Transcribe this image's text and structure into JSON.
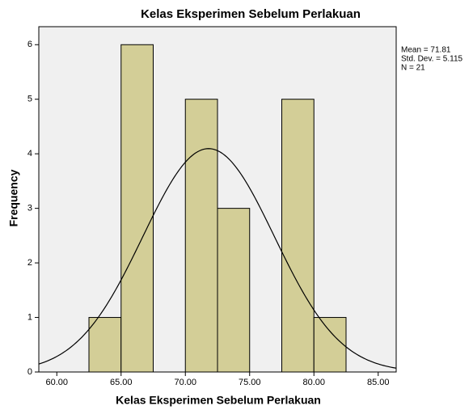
{
  "chart_data": {
    "type": "histogram",
    "title": "Kelas Eksperimen Sebelum Perlakuan",
    "x_label": "Kelas Eksperimen Sebelum Perlakuan",
    "y_label": "Frequency",
    "bins": [
      62.5,
      65,
      67.5,
      70,
      72.5,
      75,
      77.5,
      80,
      82.5
    ],
    "values": [
      1,
      6,
      0,
      5,
      3,
      0,
      5,
      1
    ],
    "color": "#d3ce97",
    "xlim": [
      58.6,
      86.4
    ],
    "xticks": [
      {
        "value": 60,
        "label": "60.00"
      },
      {
        "value": 65,
        "label": "65.00"
      },
      {
        "value": 70,
        "label": "70.00"
      },
      {
        "value": 75,
        "label": "75.00"
      },
      {
        "value": 80,
        "label": "80.00"
      },
      {
        "value": 85,
        "label": "85.00"
      }
    ],
    "ylim": [
      0,
      6.33
    ],
    "yticks": [
      0,
      1,
      2,
      3,
      4,
      5,
      6
    ],
    "mean": 71.81,
    "std_dev": 5.115,
    "n": 21,
    "annotations": [
      "Mean = 71.81",
      "Std. Dev. = 5.115",
      "N = 21"
    ]
  }
}
